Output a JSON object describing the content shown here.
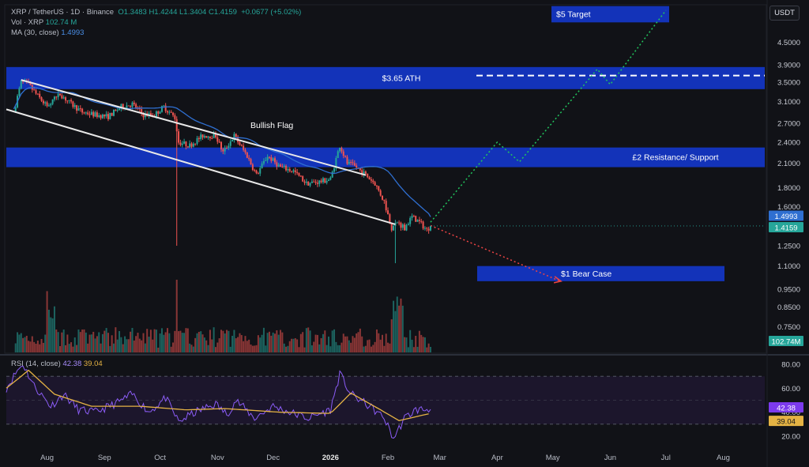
{
  "header": {
    "symbol_line": "XRP / TetherUS · 1D · Binance",
    "ohlc": "O1.3483 H1.4244 L1.3404 C1.4159",
    "change": "+0.0677 (+5.02%)",
    "volume_label": "Vol · XRP",
    "volume_value": "102.74 M",
    "ma_label": "MA (30, close)",
    "ma_value": "1.4993",
    "currency_button": "USDT"
  },
  "rsi_header": {
    "label": "RSI (14, close)",
    "rsi_value": "42.38",
    "ma_value": "39.04"
  },
  "colors": {
    "background": "#111217",
    "up": "#26a69a",
    "down": "#ef5350",
    "zone_blue": "#1336c8",
    "ma_line": "#2f6fd1",
    "rsi_line": "#8b5cf6",
    "rsi_ma": "#e5b344",
    "bull_projection": "#22c55e",
    "bear_projection": "#ef4444"
  },
  "chart_data": [
    {
      "type": "candlestick",
      "title": "XRP / TetherUS · 1D · Binance",
      "y_scale": "log",
      "price_ticks": [
        4.5,
        3.9,
        3.5,
        3.1,
        2.7,
        2.4,
        2.1,
        1.8,
        1.6,
        1.25,
        1.1,
        0.95,
        0.85,
        0.75
      ],
      "price_tick_labels": [
        "4.5000",
        "3.9000",
        "3.5000",
        "3.1000",
        "2.7000",
        "2.4000",
        "2.1000",
        "1.8000",
        "1.6000",
        "1.2500",
        "1.1000",
        "0.9500",
        "0.8500",
        "0.7500"
      ],
      "x_labels": [
        "Aug",
        "Sep",
        "Oct",
        "Nov",
        "Dec",
        "2026",
        "Feb",
        "Mar",
        "Apr",
        "May",
        "Jun",
        "Jul",
        "Aug"
      ],
      "last_close": 1.4159,
      "last_close_label": "1.4159",
      "ma_last": 1.4993,
      "ma_last_label": "1.4993",
      "volume_last_label": "102.74M",
      "price_path": [
        {
          "date": "2025-07-14",
          "close": 2.9
        },
        {
          "date": "2025-07-18",
          "close": 3.5
        },
        {
          "date": "2025-07-22",
          "close": 3.45
        },
        {
          "date": "2025-07-26",
          "close": 3.25
        },
        {
          "date": "2025-08-01",
          "close": 3.0
        },
        {
          "date": "2025-08-08",
          "close": 3.25
        },
        {
          "date": "2025-08-14",
          "close": 3.05
        },
        {
          "date": "2025-08-20",
          "close": 2.9
        },
        {
          "date": "2025-08-27",
          "close": 2.85
        },
        {
          "date": "2025-09-03",
          "close": 2.82
        },
        {
          "date": "2025-09-10",
          "close": 3.0
        },
        {
          "date": "2025-09-16",
          "close": 3.05
        },
        {
          "date": "2025-09-22",
          "close": 2.85
        },
        {
          "date": "2025-09-28",
          "close": 2.85
        },
        {
          "date": "2025-10-03",
          "close": 3.0
        },
        {
          "date": "2025-10-09",
          "close": 2.8
        },
        {
          "date": "2025-10-11",
          "close": 2.4
        },
        {
          "date": "2025-10-17",
          "close": 2.35
        },
        {
          "date": "2025-10-24",
          "close": 2.5
        },
        {
          "date": "2025-10-31",
          "close": 2.5
        },
        {
          "date": "2025-11-04",
          "close": 2.25
        },
        {
          "date": "2025-11-10",
          "close": 2.5
        },
        {
          "date": "2025-11-17",
          "close": 2.2
        },
        {
          "date": "2025-11-22",
          "close": 1.95
        },
        {
          "date": "2025-11-28",
          "close": 2.2
        },
        {
          "date": "2025-12-05",
          "close": 2.05
        },
        {
          "date": "2025-12-12",
          "close": 2.0
        },
        {
          "date": "2025-12-19",
          "close": 1.85
        },
        {
          "date": "2025-12-26",
          "close": 1.87
        },
        {
          "date": "2026-01-01",
          "close": 1.9
        },
        {
          "date": "2026-01-06",
          "close": 2.35
        },
        {
          "date": "2026-01-10",
          "close": 2.1
        },
        {
          "date": "2026-01-15",
          "close": 2.05
        },
        {
          "date": "2026-01-20",
          "close": 1.95
        },
        {
          "date": "2026-01-25",
          "close": 1.85
        },
        {
          "date": "2026-01-30",
          "close": 1.65
        },
        {
          "date": "2026-02-03",
          "close": 1.4
        },
        {
          "date": "2026-02-06",
          "close": 1.45
        },
        {
          "date": "2026-02-10",
          "close": 1.4
        },
        {
          "date": "2026-02-14",
          "close": 1.5
        },
        {
          "date": "2026-02-18",
          "close": 1.45
        },
        {
          "date": "2026-02-22",
          "close": 1.38
        },
        {
          "date": "2026-02-24",
          "close": 1.4159
        }
      ],
      "wicks": [
        {
          "date": "2025-10-10",
          "low": 1.25
        },
        {
          "date": "2026-02-05",
          "low": 1.12
        }
      ],
      "annotations": {
        "zones": [
          {
            "label": "$3.65 ATH",
            "price_low": 3.35,
            "price_high": 3.85,
            "dashed_level": 3.65
          },
          {
            "label": "£2 Resistance/ Support",
            "price_low": 2.05,
            "price_high": 2.32
          },
          {
            "label": "$5 Target",
            "price_low": 5.1,
            "price_high": 5.65
          },
          {
            "label": "$1 Bear Case",
            "price_low": 1.0,
            "price_high": 1.1
          }
        ],
        "channel_label": "Bullish Flag",
        "channel_upper": [
          {
            "date": "2025-07-18",
            "price": 3.55
          },
          {
            "date": "2026-01-20",
            "price": 1.95
          }
        ],
        "channel_lower": [
          {
            "date": "2025-07-10",
            "price": 2.95
          },
          {
            "date": "2026-02-05",
            "price": 1.43
          }
        ],
        "bull_projection": [
          {
            "date": "2026-02-24",
            "price": 1.45
          },
          {
            "date": "2026-04-01",
            "price": 2.4
          },
          {
            "date": "2026-04-13",
            "price": 2.12
          },
          {
            "date": "2026-05-25",
            "price": 3.8
          },
          {
            "date": "2026-06-01",
            "price": 3.45
          },
          {
            "date": "2026-07-01",
            "price": 5.5
          }
        ],
        "bear_projection": [
          {
            "date": "2026-02-24",
            "price": 1.42
          },
          {
            "date": "2026-05-05",
            "price": 1.0
          }
        ]
      }
    },
    {
      "type": "line",
      "title": "RSI (14, close)",
      "ylim": [
        10,
        90
      ],
      "y_ticks": [
        80,
        60,
        40,
        20
      ],
      "y_tick_labels": [
        "80.00",
        "60.00",
        "40.00",
        "20.00"
      ],
      "band_levels": [
        70,
        30
      ],
      "last_rsi": 42.38,
      "last_ma": 39.04,
      "rsi_path": [
        {
          "date": "2025-07-10",
          "rsi": 60
        },
        {
          "date": "2025-07-16",
          "rsi": 75
        },
        {
          "date": "2025-07-19",
          "rsi": 80
        },
        {
          "date": "2025-07-25",
          "rsi": 62
        },
        {
          "date": "2025-08-03",
          "rsi": 45
        },
        {
          "date": "2025-08-10",
          "rsi": 55
        },
        {
          "date": "2025-08-18",
          "rsi": 42
        },
        {
          "date": "2025-08-27",
          "rsi": 40
        },
        {
          "date": "2025-09-08",
          "rsi": 48
        },
        {
          "date": "2025-09-16",
          "rsi": 55
        },
        {
          "date": "2025-09-25",
          "rsi": 40
        },
        {
          "date": "2025-10-04",
          "rsi": 52
        },
        {
          "date": "2025-10-11",
          "rsi": 32
        },
        {
          "date": "2025-10-20",
          "rsi": 40
        },
        {
          "date": "2025-10-31",
          "rsi": 47
        },
        {
          "date": "2025-11-06",
          "rsi": 38
        },
        {
          "date": "2025-11-11",
          "rsi": 50
        },
        {
          "date": "2025-11-21",
          "rsi": 35
        },
        {
          "date": "2025-12-01",
          "rsi": 45
        },
        {
          "date": "2025-12-10",
          "rsi": 40
        },
        {
          "date": "2025-12-20",
          "rsi": 35
        },
        {
          "date": "2026-01-01",
          "rsi": 42
        },
        {
          "date": "2026-01-06",
          "rsi": 72
        },
        {
          "date": "2026-01-12",
          "rsi": 55
        },
        {
          "date": "2026-01-22",
          "rsi": 45
        },
        {
          "date": "2026-01-30",
          "rsi": 35
        },
        {
          "date": "2026-02-04",
          "rsi": 18
        },
        {
          "date": "2026-02-10",
          "rsi": 35
        },
        {
          "date": "2026-02-16",
          "rsi": 42
        },
        {
          "date": "2026-02-24",
          "rsi": 42.38
        }
      ],
      "ma_path": [
        {
          "date": "2025-07-10",
          "rsi": 60
        },
        {
          "date": "2025-07-22",
          "rsi": 75
        },
        {
          "date": "2025-08-05",
          "rsi": 55
        },
        {
          "date": "2025-08-25",
          "rsi": 45
        },
        {
          "date": "2025-09-20",
          "rsi": 45
        },
        {
          "date": "2025-10-15",
          "rsi": 42
        },
        {
          "date": "2025-11-05",
          "rsi": 43
        },
        {
          "date": "2025-12-05",
          "rsi": 40
        },
        {
          "date": "2026-01-01",
          "rsi": 39
        },
        {
          "date": "2026-01-12",
          "rsi": 56
        },
        {
          "date": "2026-01-28",
          "rsi": 42
        },
        {
          "date": "2026-02-07",
          "rsi": 33
        },
        {
          "date": "2026-02-24",
          "rsi": 39.04
        }
      ]
    }
  ]
}
